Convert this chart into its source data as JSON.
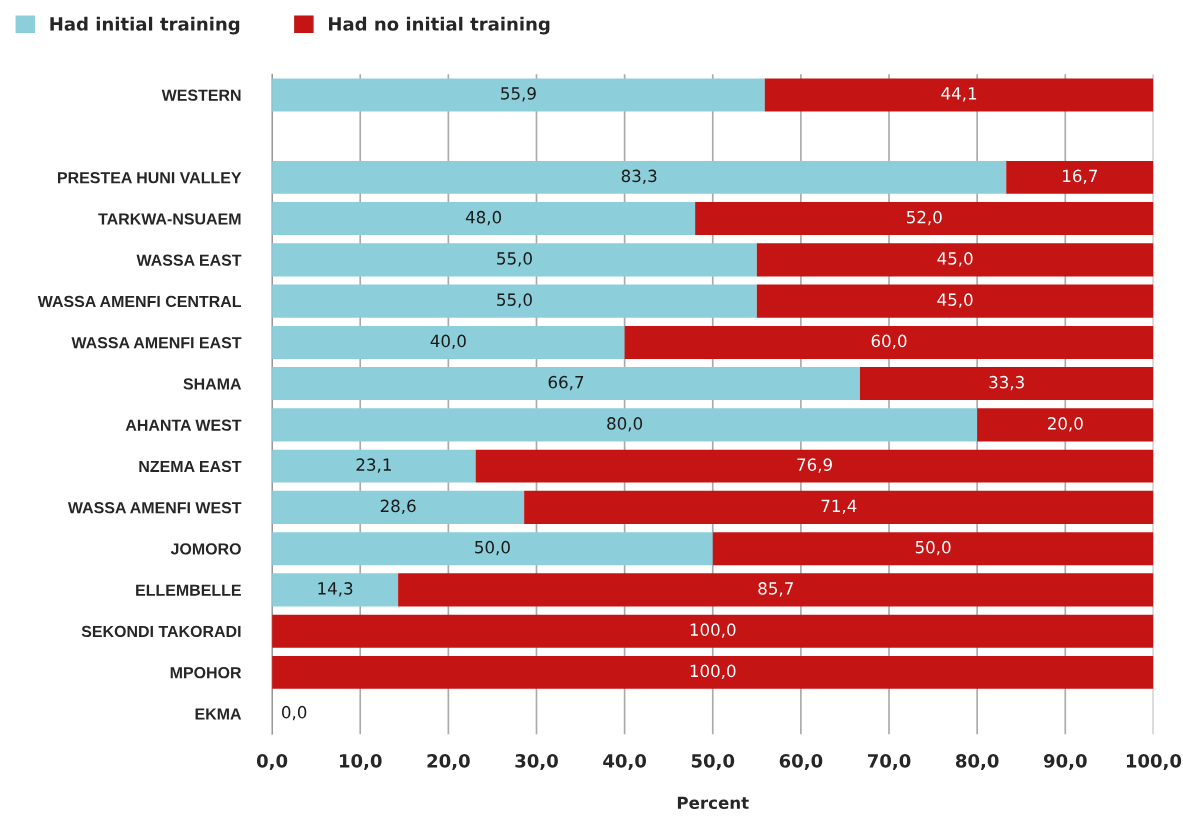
{
  "chart_data": {
    "type": "bar",
    "orientation": "horizontal",
    "stacked": true,
    "xlabel": "Percent",
    "categories": [
      "WESTERN",
      null,
      "PRESTEA HUNI VALLEY",
      "TARKWA-NSUAEM",
      "WASSA EAST",
      "WASSA AMENFI CENTRAL",
      "WASSA AMENFI EAST",
      "SHAMA",
      "AHANTA WEST",
      "NZEMA EAST",
      "WASSA AMENFI WEST",
      "JOMORO",
      "ELLEMBELLE",
      "SEKONDI TAKORADI",
      "MPOHOR",
      "EKMA"
    ],
    "series": [
      {
        "name": "Had initial training",
        "color": "#8ccfdb",
        "values": [
          55.9,
          null,
          83.3,
          48.0,
          55.0,
          55.0,
          40.0,
          66.7,
          80.0,
          23.1,
          28.6,
          50.0,
          14.3,
          0,
          0,
          0
        ],
        "value_labels": [
          "55,9",
          null,
          "83,3",
          "48,0",
          "55,0",
          "55,0",
          "40,0",
          "66,7",
          "80,0",
          "23,1",
          "28,6",
          "50,0",
          "14,3",
          null,
          null,
          "0,0"
        ]
      },
      {
        "name": "Had no initial training",
        "color": "#c41414",
        "values": [
          44.1,
          null,
          16.7,
          52.0,
          45.0,
          45.0,
          60.0,
          33.3,
          20.0,
          76.9,
          71.4,
          50.0,
          85.7,
          100.0,
          100.0,
          null
        ],
        "value_labels": [
          "44,1",
          null,
          "16,7",
          "52,0",
          "45,0",
          "45,0",
          "60,0",
          "33,3",
          "20,0",
          "76,9",
          "71,4",
          "50,0",
          "85,7",
          "100,0",
          "100,0",
          null
        ]
      }
    ],
    "xlim": [
      0,
      100
    ],
    "xticks": [
      {
        "value": 0,
        "label": "0,0"
      },
      {
        "value": 10,
        "label": "10,0"
      },
      {
        "value": 20,
        "label": "20,0"
      },
      {
        "value": 30,
        "label": "30,0"
      },
      {
        "value": 40,
        "label": "40,0"
      },
      {
        "value": 50,
        "label": "50,0"
      },
      {
        "value": 60,
        "label": "60,0"
      },
      {
        "value": 70,
        "label": "70,0"
      },
      {
        "value": 80,
        "label": "80,0"
      },
      {
        "value": 90,
        "label": "90,0"
      },
      {
        "value": 100,
        "label": "100,0"
      }
    ],
    "grid": "x",
    "legend": "top left"
  }
}
